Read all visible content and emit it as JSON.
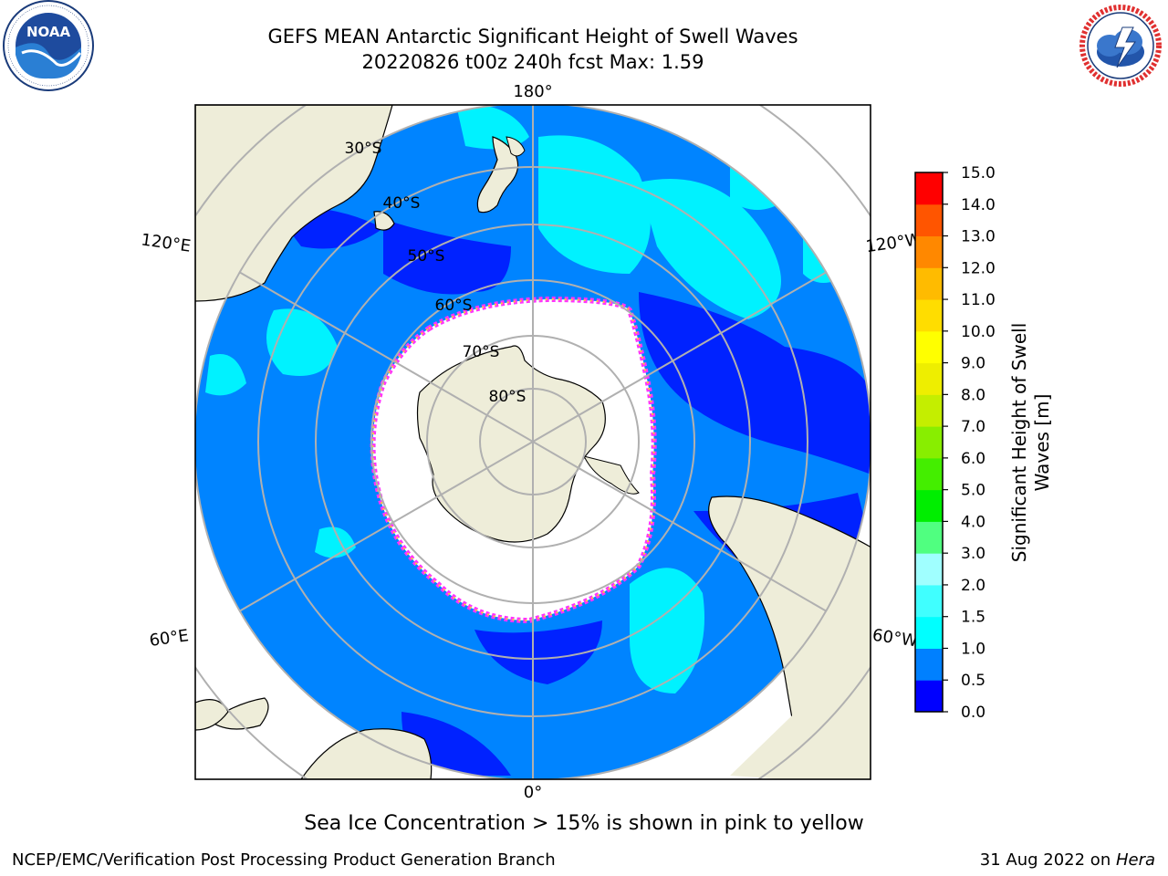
{
  "header": {
    "title_line1": "GEFS MEAN Antarctic Significant Height of Swell Waves",
    "title_line2": "20220826 t00z 240h fcst   Max: 1.59"
  },
  "logos": {
    "left": {
      "icon": "noaa-logo-icon",
      "text": "NOAA",
      "ring_text": "NATIONAL OCEANIC AND ATMOSPHERIC ADMINISTRATION · U.S. DEPARTMENT OF COMMERCE"
    },
    "right": {
      "icon": "nws-logo-icon",
      "ring_text": "NATIONAL WEATHER SERVICE"
    }
  },
  "map": {
    "projection": "south-polar-stereographic",
    "longitude_labels": {
      "top": "180°",
      "bottom": "0°",
      "upper_left": "120°E",
      "upper_right": "120°W",
      "lower_left": "60°E",
      "lower_right": "60°W"
    },
    "latitude_labels": [
      "30°S",
      "40°S",
      "50°S",
      "60°S",
      "70°S",
      "80°S"
    ],
    "colors": {
      "land": "#eeedd9",
      "ocean_low": "#0022ff",
      "ocean_mid": "#0084ff",
      "ocean_high": "#00f2ff",
      "ice": "#ffffff",
      "grid": "#b0b0b0",
      "ice_edge": [
        "#ff00ff",
        "#ffaa00",
        "#ffee00"
      ]
    }
  },
  "colorbar": {
    "label": "Significant Height of Swell Waves [m]",
    "label_line1": "Significant Height of Swell",
    "label_line2": "Waves [m]",
    "ticks": [
      "0.0",
      "0.5",
      "1.0",
      "1.5",
      "2.0",
      "3.0",
      "4.0",
      "5.0",
      "6.0",
      "7.0",
      "8.0",
      "9.0",
      "10.0",
      "11.0",
      "12.0",
      "13.0",
      "14.0",
      "15.0"
    ],
    "colors": [
      "#0000ff",
      "#0080ff",
      "#00ffff",
      "#40ffff",
      "#a0ffff",
      "#50ff80",
      "#00ee00",
      "#44ee00",
      "#88ee00",
      "#c4ee00",
      "#eeee00",
      "#ffff00",
      "#ffdd00",
      "#ffbb00",
      "#ff8800",
      "#ff5500",
      "#ff0000"
    ]
  },
  "caption": "Sea Ice Concentration > 15% is shown in pink to yellow",
  "footer": {
    "left": "NCEP/EMC/Verification Post Processing Product Generation Branch",
    "right_prefix": "31 Aug 2022 on ",
    "right_host": "Hera"
  }
}
